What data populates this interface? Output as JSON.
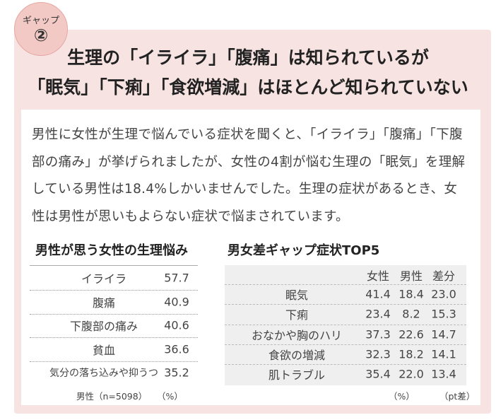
{
  "badge": {
    "label": "ギャップ",
    "number": "②"
  },
  "title": {
    "line1": "生理の「イライラ」「腹痛」は知られているが",
    "line2": "「眠気」「下痢」「食欲増減」はほとんど知られていない"
  },
  "body": [
    "男性に女性が生理で悩んでいる症状を聞くと、「イライラ」「腹痛」「下腹",
    "部の痛み」が挙げられましたが、女性の4割が悩む生理の「眠気」を理解",
    "している男性は18.4%しかいませんでした。生理の症状があるとき、女",
    "性は男性が思いもよらない症状で悩まされています。"
  ],
  "left_table": {
    "title": "男性が思う女性の生理悩み",
    "rows": [
      [
        "イライラ",
        "57.7"
      ],
      [
        "腹痛",
        "40.9"
      ],
      [
        "下腹部の痛み",
        "40.6"
      ],
      [
        "貧血",
        "36.6"
      ],
      [
        "気分の落ち込みや抑うつ",
        "35.2"
      ]
    ],
    "note": "男性（n=5098）",
    "unit": "（%）"
  },
  "right_table": {
    "title": "男女差ギャップ症状TOP5",
    "header": [
      "女性",
      "男性",
      "差分"
    ],
    "rows": [
      [
        "眠気",
        "41.4",
        "18.4",
        "23.0"
      ],
      [
        "下痢",
        "23.4",
        "8.2",
        "15.3"
      ],
      [
        "おなかや胸のハリ",
        "37.3",
        "22.6",
        "14.7"
      ],
      [
        "食欲の増減",
        "32.3",
        "18.2",
        "14.1"
      ],
      [
        "肌トラブル",
        "35.4",
        "22.0",
        "13.4"
      ]
    ],
    "unit": "（%）",
    "unit2": "（pt差）"
  }
}
